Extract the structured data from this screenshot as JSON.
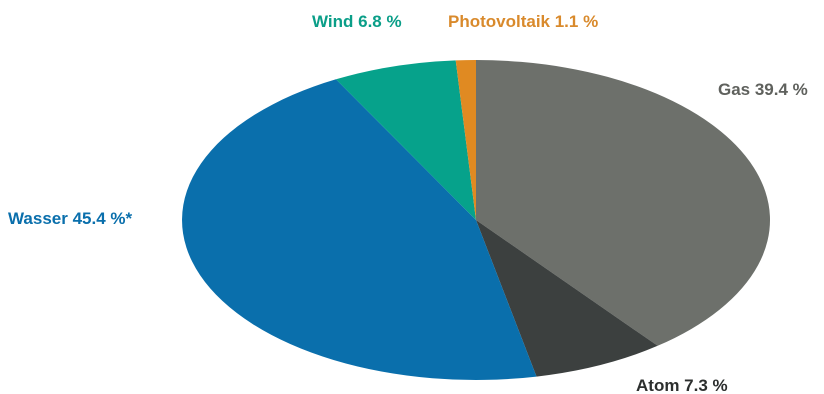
{
  "chart_data": {
    "type": "pie",
    "title": "",
    "slices": [
      {
        "name": "Gas",
        "value": 39.4,
        "label": "Gas 39.4 %",
        "color": "#6d706b",
        "label_color": "#5f615d"
      },
      {
        "name": "Atom",
        "value": 7.3,
        "label": "Atom 7.3 %",
        "color": "#3c403f",
        "label_color": "#2c2f2e"
      },
      {
        "name": "Wasser",
        "value": 45.4,
        "label": "Wasser 45.4 %*",
        "color": "#0a6fac",
        "label_color": "#0a6fac"
      },
      {
        "name": "Wind",
        "value": 6.8,
        "label": "Wind 6.8 %",
        "color": "#06a28b",
        "label_color": "#0a9e88"
      },
      {
        "name": "Photovoltaik",
        "value": 1.1,
        "label": "Photovoltaik 1.1 %",
        "color": "#e08a22",
        "label_color": "#d98a2c"
      }
    ],
    "legend": "none",
    "start": "top",
    "direction": "clockwise"
  }
}
